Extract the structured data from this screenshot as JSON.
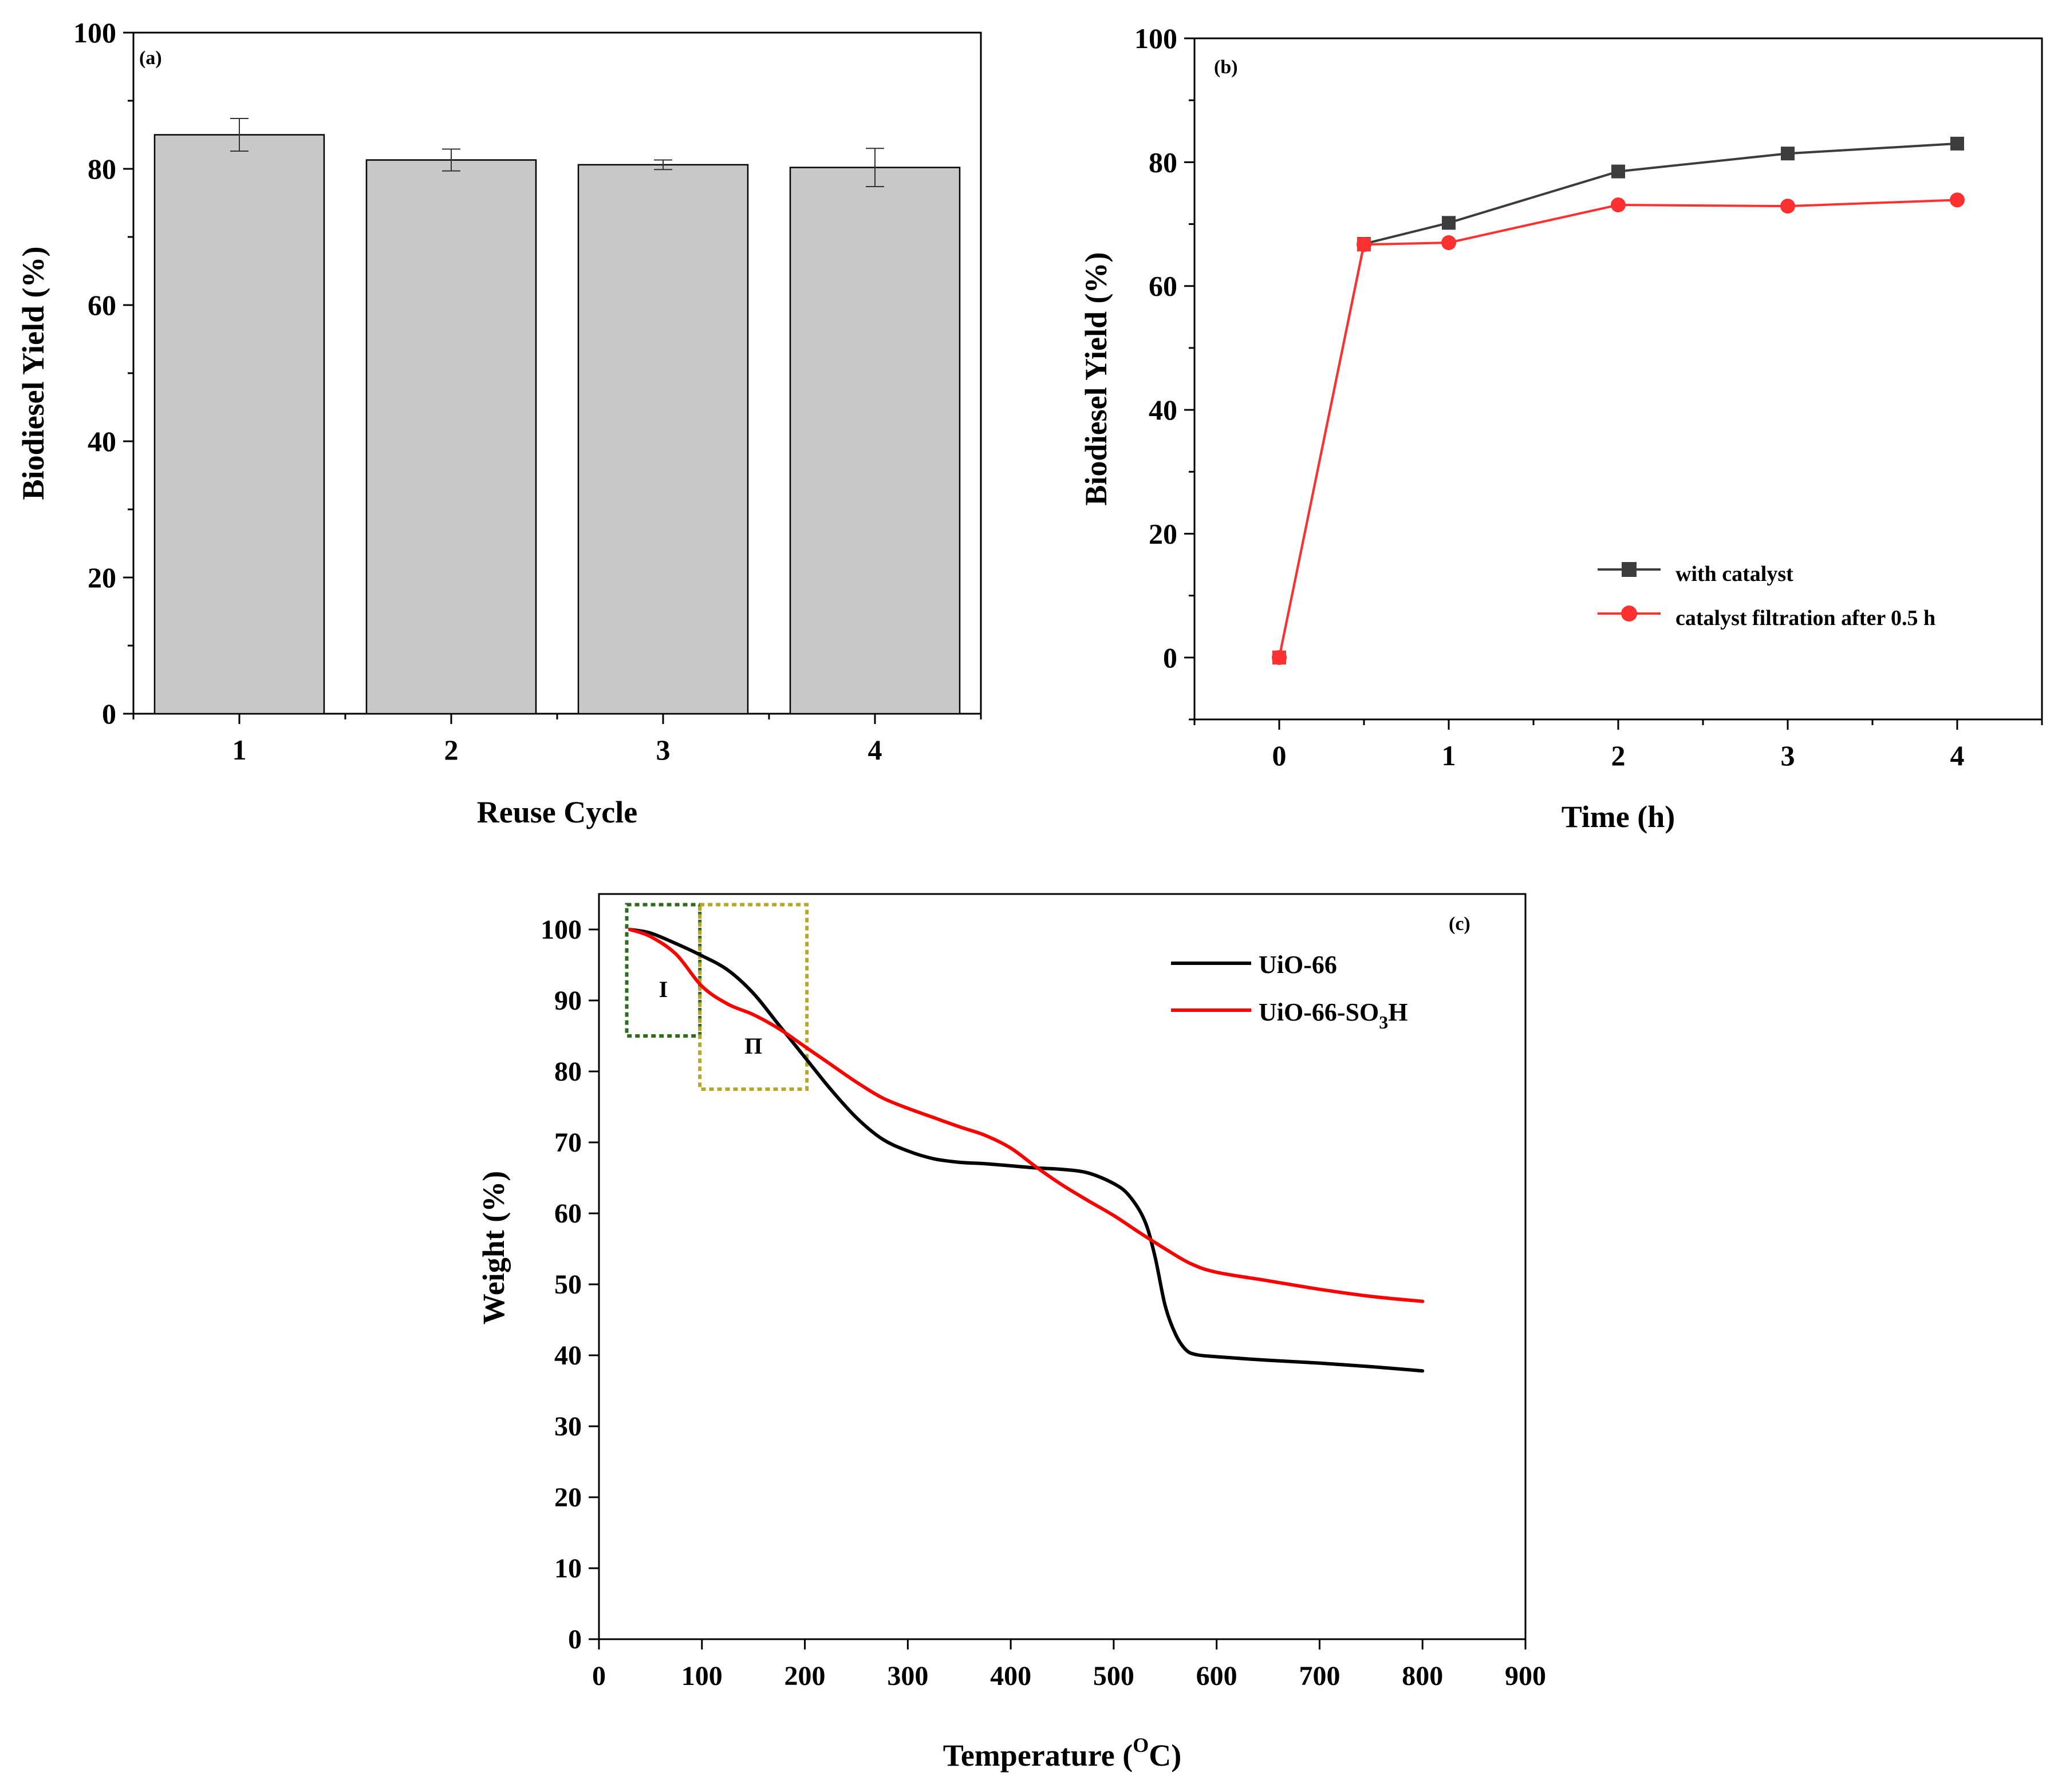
{
  "colors": {
    "bar_fill": "#c8c8c8",
    "with_catalyst": "#3c3c3c",
    "filtration": "#ff3030",
    "uio66": "#000000",
    "uio66_so3h": "#ff0000",
    "region_I": "#2e6b1e",
    "region_II": "#b5a829"
  },
  "chart_data": [
    {
      "panel": "(a)",
      "type": "bar",
      "xlabel": "Reuse Cycle",
      "ylabel": "Biodiesel Yield (%)",
      "ylim": [
        0,
        100
      ],
      "yticks": [
        0,
        20,
        40,
        60,
        80,
        100
      ],
      "categories": [
        "1",
        "2",
        "3",
        "4"
      ],
      "values": [
        85.0,
        81.3,
        80.6,
        80.2
      ],
      "errors": [
        2.4,
        1.6,
        0.7,
        2.8
      ],
      "grid": false
    },
    {
      "panel": "(b)",
      "type": "line",
      "xlabel": "Time (h)",
      "ylabel": "Biodiesel Yield (%)",
      "xlim": [
        -0.5,
        4.5
      ],
      "ylim": [
        -10,
        100
      ],
      "xticks": [
        0,
        1,
        2,
        3,
        4
      ],
      "yticks": [
        0,
        20,
        40,
        60,
        80,
        100
      ],
      "grid": false,
      "legend_position": "bottom-right",
      "series": [
        {
          "name": "with catalyst",
          "marker": "square",
          "x": [
            0,
            0.5,
            1,
            2,
            3,
            4
          ],
          "y": [
            0,
            66.8,
            70.2,
            78.5,
            81.4,
            83.0
          ]
        },
        {
          "name": "catalyst filtration after 0.5 h",
          "marker": "circle",
          "x": [
            0,
            0.5,
            1,
            2,
            3,
            4
          ],
          "y": [
            0,
            66.7,
            67.0,
            73.1,
            72.9,
            73.9
          ]
        }
      ]
    },
    {
      "panel": "(c)",
      "type": "line",
      "xlabel": "Temperature (",
      "xlabel_sup": "O",
      "xlabel_tail": "C)",
      "ylabel": "Weight (%)",
      "xlim": [
        0,
        900
      ],
      "ylim": [
        0,
        105
      ],
      "xticks": [
        0,
        100,
        200,
        300,
        400,
        500,
        600,
        700,
        800,
        900
      ],
      "yticks": [
        0,
        10,
        20,
        30,
        40,
        50,
        60,
        70,
        80,
        90,
        100
      ],
      "grid": false,
      "legend_position": "top-right",
      "regions": [
        {
          "label": "I",
          "x_range": [
            27,
            98
          ],
          "y_range": [
            85,
            103.5
          ]
        },
        {
          "label": "Π",
          "x_range": [
            98,
            202
          ],
          "y_range": [
            77.5,
            103.5
          ]
        }
      ],
      "series": [
        {
          "name": "UiO-66",
          "x": [
            30,
            50,
            75,
            100,
            125,
            150,
            175,
            200,
            225,
            250,
            275,
            300,
            325,
            350,
            375,
            400,
            425,
            450,
            475,
            500,
            515,
            530,
            540,
            550,
            560,
            570,
            580,
            600,
            650,
            700,
            750,
            800
          ],
          "y": [
            100,
            99.5,
            98,
            96.3,
            94.3,
            91,
            86.5,
            82,
            77.5,
            73.5,
            70.5,
            68.8,
            67.7,
            67.2,
            67,
            66.7,
            66.4,
            66.2,
            65.7,
            64.2,
            62.5,
            59,
            54,
            47,
            43,
            40.8,
            40.1,
            39.8,
            39.3,
            38.9,
            38.4,
            37.8
          ]
        },
        {
          "name": "UiO-66-SO3H",
          "name_main": "UiO-66-SO",
          "name_sub": "3",
          "name_tail": "H",
          "x": [
            30,
            50,
            75,
            100,
            125,
            150,
            175,
            200,
            225,
            250,
            275,
            300,
            325,
            350,
            375,
            400,
            425,
            450,
            475,
            500,
            525,
            550,
            575,
            600,
            650,
            700,
            750,
            800
          ],
          "y": [
            100,
            99,
            96.5,
            92,
            89.5,
            88,
            86,
            83.5,
            81,
            78.5,
            76.3,
            74.8,
            73.5,
            72.2,
            71,
            69.2,
            66.5,
            64,
            61.8,
            59.7,
            57.3,
            55,
            52.9,
            51.7,
            50.5,
            49.3,
            48.3,
            47.6
          ]
        }
      ]
    }
  ]
}
